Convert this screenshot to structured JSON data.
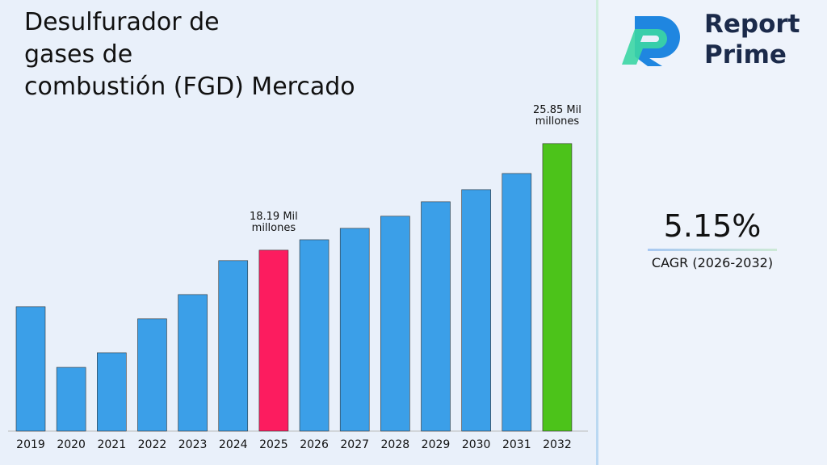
{
  "chart_data": {
    "type": "bar",
    "title": [
      "Desulfurador de",
      "gases de",
      "combustión (FGD) Mercado"
    ],
    "categories": [
      "2019",
      "2020",
      "2021",
      "2022",
      "2023",
      "2024",
      "2025",
      "2026",
      "2027",
      "2028",
      "2029",
      "2030",
      "2031",
      "2032"
    ],
    "values": [
      14.13,
      9.77,
      10.82,
      13.26,
      15.0,
      17.44,
      18.19,
      18.94,
      19.76,
      20.63,
      21.67,
      22.54,
      23.7,
      25.85
    ],
    "value_labels": [
      null,
      null,
      null,
      null,
      null,
      null,
      "18.19 Mil millones",
      null,
      null,
      null,
      null,
      null,
      null,
      "25.85 Mil millones"
    ],
    "colors": [
      "#3b9fe8",
      "#3b9fe8",
      "#3b9fe8",
      "#3b9fe8",
      "#3b9fe8",
      "#3b9fe8",
      "#fc1c5f",
      "#3b9fe8",
      "#3b9fe8",
      "#3b9fe8",
      "#3b9fe8",
      "#3b9fe8",
      "#3b9fe8",
      "#4cc31a"
    ],
    "ylim": [
      5.19,
      27
    ]
  },
  "logo": [
    "Report",
    "Prime"
  ],
  "cagr": {
    "value": "5.15%",
    "label": "CAGR (2026-2032)"
  }
}
